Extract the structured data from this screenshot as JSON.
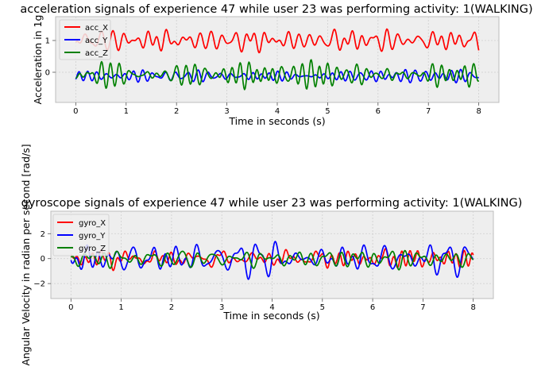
{
  "chart_data": [
    {
      "type": "line",
      "title": "acceleration signals of experience 47 while user 23 was performing activity: 1(WALKING)",
      "xlabel": "Time in seconds (s)",
      "ylabel": "Acceleration in 1g",
      "xlim": [
        -0.4,
        8.4
      ],
      "ylim": [
        -0.95,
        1.75
      ],
      "xticks": [
        0,
        1,
        2,
        3,
        4,
        5,
        6,
        7,
        8
      ],
      "yticks": [
        0,
        1
      ],
      "grid": true,
      "legend_position": "top-left",
      "series": [
        {
          "name": "acc_X",
          "color": "#ff0000",
          "base": 1.0,
          "amplitude": 0.28,
          "seed": 11
        },
        {
          "name": "acc_Y",
          "color": "#0000ff",
          "base": -0.12,
          "amplitude": 0.14,
          "seed": 23
        },
        {
          "name": "acc_Z",
          "color": "#008000",
          "base": -0.08,
          "amplitude": 0.26,
          "seed": 37
        }
      ]
    },
    {
      "type": "line",
      "title": "gyroscope signals of experience 47 while user 23 was performing activity: 1(WALKING)",
      "xlabel": "Time in seconds (s)",
      "ylabel": "Angular Velocity in radian per second [rad/s]",
      "xlim": [
        -0.4,
        8.4
      ],
      "ylim": [
        -3.2,
        3.8
      ],
      "xticks": [
        0,
        1,
        2,
        3,
        4,
        5,
        6,
        7,
        8
      ],
      "yticks": [
        -2,
        0,
        2
      ],
      "grid": true,
      "legend_position": "top-left",
      "series": [
        {
          "name": "gyro_X",
          "color": "#ff0000",
          "base": 0.0,
          "amplitude": 0.55,
          "seed": 51
        },
        {
          "name": "gyro_Y",
          "color": "#0000ff",
          "base": 0.0,
          "amplitude": 1.4,
          "seed": 67
        },
        {
          "name": "gyro_Z",
          "color": "#008000",
          "base": 0.0,
          "amplitude": 0.55,
          "seed": 83
        }
      ]
    }
  ]
}
